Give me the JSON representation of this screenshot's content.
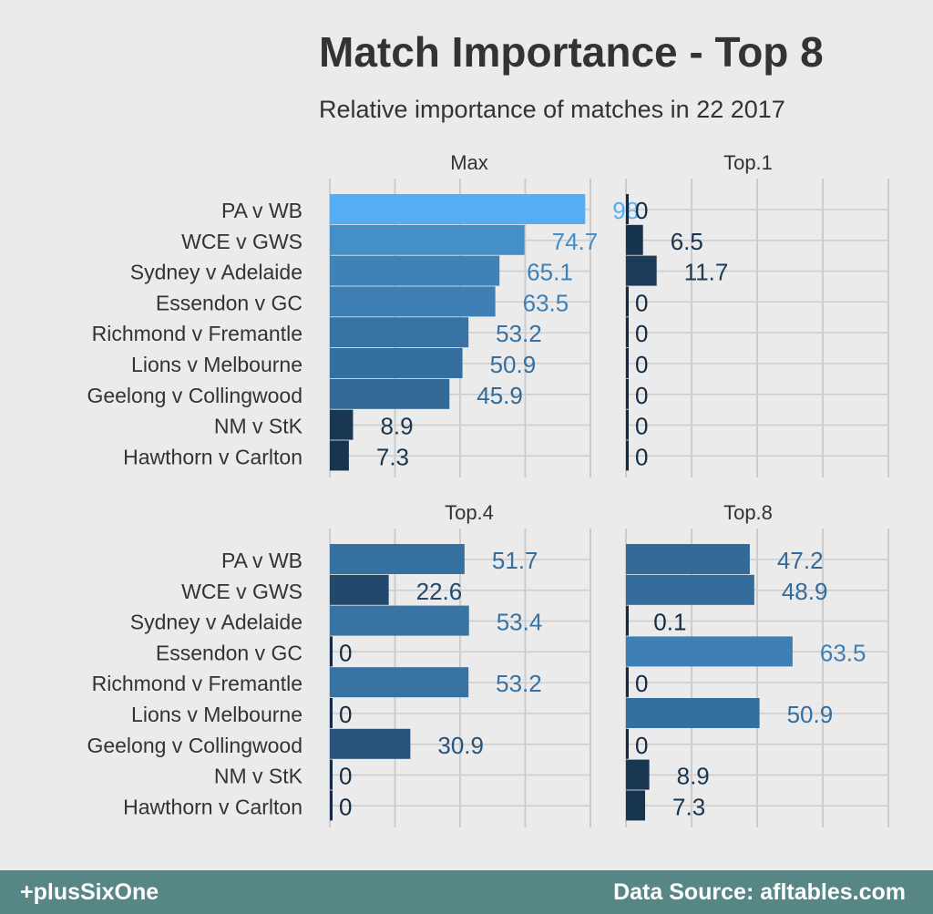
{
  "title": "Match Importance - Top 8",
  "subtitle": "Relative importance of matches in 22 2017",
  "footer": {
    "left": "+plusSixOne",
    "right": "Data Source: afltables.com"
  },
  "colors": {
    "background": "#ebebeb",
    "grid": "#cccccc",
    "bar_low": "#132b43",
    "bar_high": "#56b1f7",
    "footer_bg": "#568785"
  },
  "chart_data": {
    "type": "bar",
    "orientation": "horizontal",
    "categories": [
      "PA v WB",
      "WCE v GWS",
      "Sydney v Adelaide",
      "Essendon v GC",
      "Richmond v Fremantle",
      "Lions v Melbourne",
      "Geelong v Collingwood",
      "NM v StK",
      "Hawthorn v Carlton"
    ],
    "xlim": [
      0,
      100
    ],
    "grid": true,
    "color_scale": "continuous, dark navy (low) to light blue (high)",
    "facets": [
      {
        "name": "Max",
        "values": [
          98,
          74.7,
          65.1,
          63.5,
          53.2,
          50.9,
          45.9,
          8.9,
          7.3
        ]
      },
      {
        "name": "Top.1",
        "values": [
          0,
          6.5,
          11.7,
          0,
          0,
          0,
          0,
          0,
          0
        ]
      },
      {
        "name": "Top.4",
        "values": [
          51.7,
          22.6,
          53.4,
          0,
          53.2,
          0,
          30.9,
          0,
          0
        ]
      },
      {
        "name": "Top.8",
        "values": [
          47.2,
          48.9,
          0.1,
          63.5,
          0,
          50.9,
          0,
          8.9,
          7.3
        ]
      }
    ],
    "value_labels": [
      [
        "98",
        "74.7",
        "65.1",
        "63.5",
        "53.2",
        "50.9",
        "45.9",
        "8.9",
        "7.3"
      ],
      [
        "0",
        "6.5",
        "11.7",
        "0",
        "0",
        "0",
        "0",
        "0",
        "0"
      ],
      [
        "51.7",
        "22.6",
        "53.4",
        "0",
        "53.2",
        "0",
        "30.9",
        "0",
        "0"
      ],
      [
        "47.2",
        "48.9",
        "0.1",
        "63.5",
        "0",
        "50.9",
        "0",
        "8.9",
        "7.3"
      ]
    ]
  }
}
